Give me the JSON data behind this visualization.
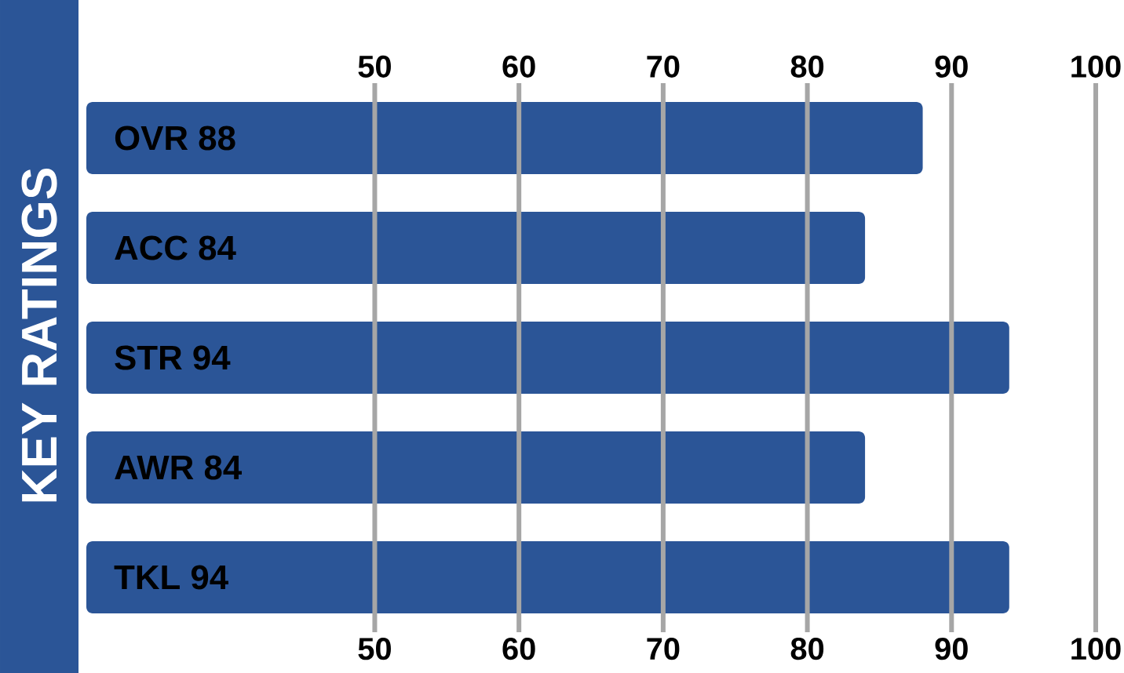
{
  "chart_data": {
    "type": "bar",
    "orientation": "horizontal",
    "title": "KEY RATINGS",
    "categories": [
      "OVR 88",
      "ACC 84",
      "STR 94",
      "AWR 84",
      "TKL 94"
    ],
    "values": [
      88,
      84,
      94,
      84,
      94
    ],
    "color": "#2b5597",
    "xlim": [
      30,
      100
    ],
    "xticks": [
      50,
      60,
      70,
      80,
      90,
      100
    ],
    "x2lim": [
      30,
      100
    ],
    "x2ticks": [
      50,
      60,
      70,
      80,
      90,
      100
    ],
    "grid": "x"
  }
}
